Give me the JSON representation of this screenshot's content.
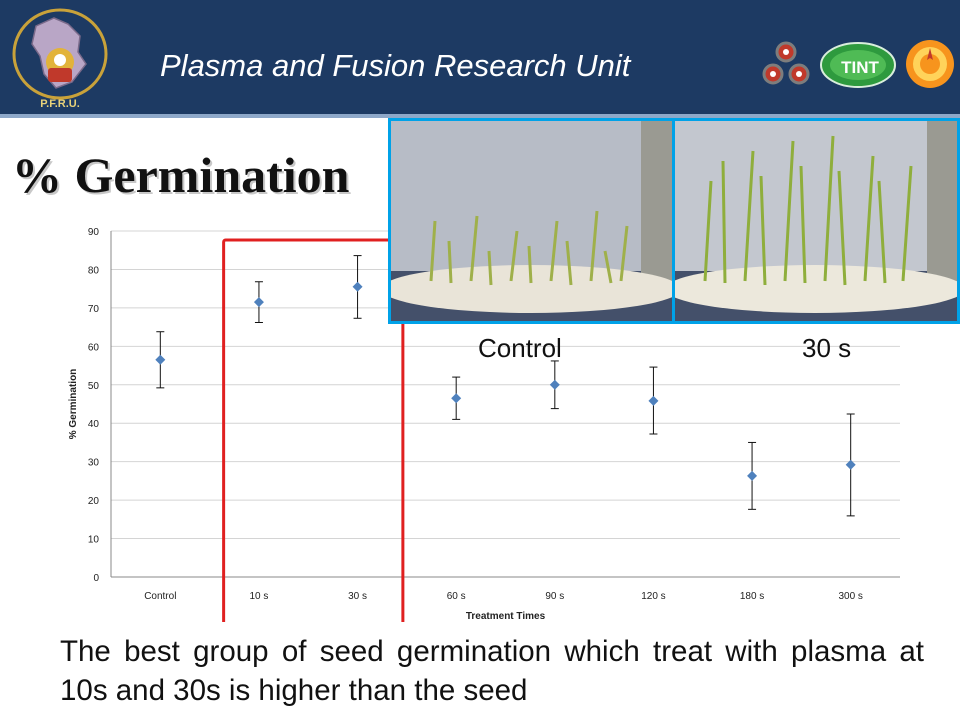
{
  "header": {
    "title": "Plasma and Fusion Research Unit",
    "left_logo_text": "P.F.R.U.",
    "right_logo_text": "TINT",
    "colors": {
      "bar": "#1d3a63",
      "border": "#8ea8c9"
    }
  },
  "slide": {
    "title": "% Germination",
    "body": "The best group of seed germination which treat with plasma at 10s and 30s is higher than the seed"
  },
  "photos": {
    "left_caption": "Control",
    "right_caption": "30 s",
    "border_color": "#00a2e8"
  },
  "chart_data": {
    "type": "scatter",
    "categories": [
      "Control",
      "10 s",
      "30 s",
      "60 s",
      "90 s",
      "120 s",
      "180 s",
      "300 s"
    ],
    "values": [
      56.5,
      71.5,
      75.5,
      46.5,
      50,
      45.8,
      26.3,
      29.2
    ],
    "error_low": [
      49.2,
      66.2,
      67.3,
      41,
      43.8,
      37.2,
      17.6,
      15.9
    ],
    "error_high": [
      63.8,
      76.8,
      83.6,
      52,
      56.2,
      54.6,
      35,
      42.4
    ],
    "xlabel": "Treatment Times",
    "ylabel": "% Germination",
    "ylim": [
      0,
      90
    ],
    "yticks": [
      0,
      10,
      20,
      30,
      40,
      50,
      60,
      70,
      80,
      90
    ],
    "grid": true,
    "marker_color": "#4f81bd",
    "highlight": {
      "categories": [
        "10 s",
        "30 s"
      ],
      "color": "#e02020"
    }
  }
}
